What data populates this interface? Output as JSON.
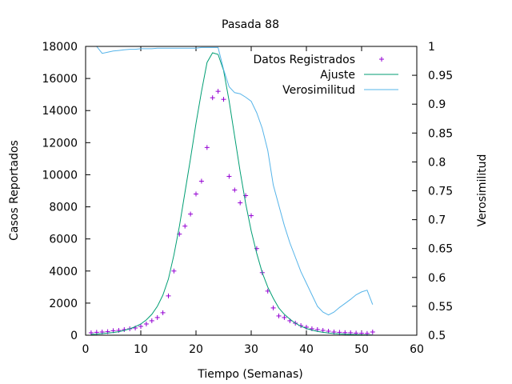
{
  "chart_data": {
    "type": "line",
    "title": "Pasada 88",
    "xlabel": "Tiempo (Semanas)",
    "ylabel": "Casos Reportados",
    "y2label": "Verosimilitud",
    "xlim": [
      0,
      60
    ],
    "ylim": [
      0,
      18000
    ],
    "y2lim": [
      0.5,
      1
    ],
    "x_ticks": [
      0,
      10,
      20,
      30,
      40,
      50,
      60
    ],
    "y_ticks": [
      0,
      2000,
      4000,
      6000,
      8000,
      10000,
      12000,
      14000,
      16000,
      18000
    ],
    "y2_ticks": [
      0.5,
      0.55,
      0.6,
      0.65,
      0.7,
      0.75,
      0.8,
      0.85,
      0.9,
      0.95,
      1
    ],
    "grid": false,
    "legend_position": "top-right",
    "series": [
      {
        "name": "Datos Registrados",
        "kind": "points",
        "axis": "y",
        "color": "#9400d3",
        "x": [
          1,
          2,
          3,
          4,
          5,
          6,
          7,
          8,
          9,
          10,
          11,
          12,
          13,
          14,
          15,
          16,
          17,
          18,
          19,
          20,
          21,
          22,
          23,
          24,
          25,
          26,
          27,
          28,
          29,
          30,
          31,
          32,
          33,
          34,
          35,
          36,
          37,
          38,
          39,
          40,
          41,
          42,
          43,
          44,
          45,
          46,
          47,
          48,
          49,
          50,
          51,
          52
        ],
        "y": [
          150,
          180,
          200,
          220,
          280,
          300,
          350,
          400,
          450,
          550,
          700,
          900,
          1100,
          1400,
          2450,
          4000,
          6300,
          6800,
          7550,
          8800,
          9600,
          11700,
          14800,
          15200,
          14700,
          9900,
          9050,
          8250,
          8700,
          7450,
          5400,
          3900,
          2750,
          1700,
          1200,
          1100,
          900,
          750,
          600,
          500,
          400,
          350,
          300,
          250,
          200,
          180,
          160,
          150,
          130,
          120,
          110,
          200
        ]
      },
      {
        "name": "Ajuste",
        "kind": "line",
        "axis": "y",
        "color": "#009e73",
        "x": [
          1,
          2,
          3,
          4,
          5,
          6,
          7,
          8,
          9,
          10,
          11,
          12,
          13,
          14,
          15,
          16,
          17,
          18,
          19,
          20,
          21,
          22,
          23,
          24,
          25,
          26,
          27,
          28,
          29,
          30,
          31,
          32,
          33,
          34,
          35,
          36,
          37,
          38,
          39,
          40,
          41,
          42,
          43,
          44,
          45,
          46,
          47,
          48,
          49,
          50,
          51,
          52
        ],
        "y": [
          50,
          70,
          100,
          130,
          170,
          220,
          300,
          400,
          530,
          700,
          950,
          1300,
          1800,
          2500,
          3500,
          5000,
          6800,
          8900,
          11000,
          13200,
          15200,
          17000,
          17600,
          17500,
          16500,
          14600,
          12400,
          10200,
          8200,
          6500,
          5100,
          3900,
          3000,
          2300,
          1700,
          1300,
          1000,
          750,
          560,
          420,
          320,
          240,
          180,
          140,
          100,
          80,
          60,
          45,
          35,
          25,
          20,
          15
        ]
      },
      {
        "name": "Verosimilitud",
        "kind": "line",
        "axis": "y2",
        "color": "#56b4e9",
        "x": [
          1,
          2,
          3,
          4,
          5,
          6,
          7,
          8,
          9,
          10,
          11,
          12,
          13,
          14,
          15,
          16,
          17,
          18,
          19,
          20,
          21,
          22,
          23,
          24,
          25,
          26,
          27,
          28,
          29,
          30,
          31,
          32,
          33,
          34,
          35,
          36,
          37,
          38,
          39,
          40,
          41,
          42,
          43,
          44,
          45,
          46,
          47,
          48,
          49,
          50,
          51,
          52
        ],
        "y": [
          1.0,
          1.0,
          0.988,
          0.99,
          0.992,
          0.993,
          0.994,
          0.995,
          0.995,
          0.996,
          0.996,
          0.996,
          0.997,
          0.997,
          0.997,
          0.997,
          0.997,
          0.997,
          0.997,
          0.997,
          0.998,
          0.998,
          0.998,
          0.998,
          0.96,
          0.93,
          0.92,
          0.918,
          0.912,
          0.905,
          0.885,
          0.858,
          0.82,
          0.76,
          0.725,
          0.69,
          0.66,
          0.635,
          0.61,
          0.59,
          0.57,
          0.55,
          0.54,
          0.535,
          0.54,
          0.548,
          0.555,
          0.562,
          0.57,
          0.575,
          0.578,
          0.553
        ]
      }
    ]
  }
}
